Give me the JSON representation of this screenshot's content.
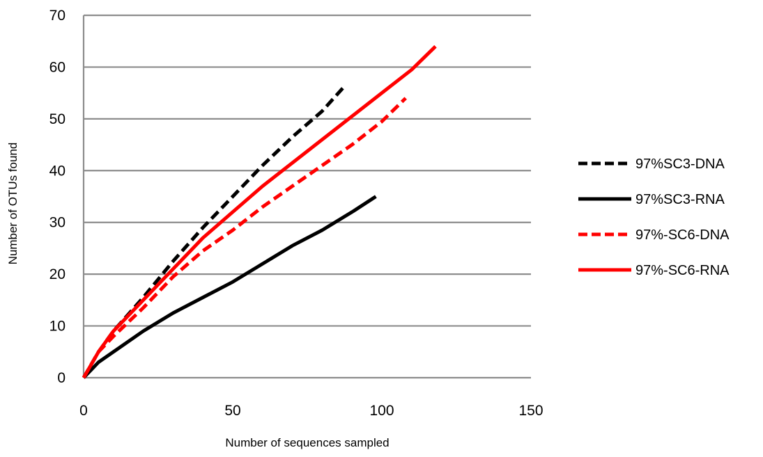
{
  "chart_data": {
    "type": "line",
    "title": "",
    "xlabel": "Number of sequences sampled",
    "ylabel": "Number of OTUs found",
    "xlim": [
      0,
      150
    ],
    "ylim": [
      0,
      70
    ],
    "xticks": [
      0,
      50,
      100,
      150
    ],
    "yticks": [
      0,
      10,
      20,
      30,
      40,
      50,
      60,
      70
    ],
    "grid": "horizontal",
    "legend_position": "right",
    "series": [
      {
        "name": "97%SC3-DNA",
        "color": "#000000",
        "dash": "dashed",
        "x": [
          0,
          5,
          10,
          20,
          30,
          40,
          50,
          60,
          70,
          80,
          87
        ],
        "y": [
          0,
          5,
          9,
          15.5,
          22.5,
          29,
          35,
          41,
          46.5,
          51.5,
          56
        ]
      },
      {
        "name": "97%SC3-RNA",
        "color": "#000000",
        "dash": "solid",
        "x": [
          0,
          5,
          10,
          20,
          30,
          40,
          50,
          60,
          70,
          80,
          90,
          98
        ],
        "y": [
          0,
          3,
          5,
          9,
          12.5,
          15.5,
          18.5,
          22,
          25.5,
          28.5,
          32,
          35
        ]
      },
      {
        "name": "97%-SC6-DNA",
        "color": "#ff0000",
        "dash": "dashed",
        "x": [
          0,
          5,
          10,
          20,
          30,
          40,
          50,
          60,
          70,
          80,
          90,
          100,
          108
        ],
        "y": [
          0,
          5,
          8,
          13.5,
          19.5,
          24.5,
          28.5,
          33,
          37,
          41,
          45,
          49.5,
          54
        ]
      },
      {
        "name": "97%-SC6-RNA",
        "color": "#ff0000",
        "dash": "solid",
        "x": [
          0,
          5,
          10,
          20,
          30,
          40,
          50,
          60,
          70,
          80,
          90,
          100,
          110,
          118
        ],
        "y": [
          0,
          5,
          9,
          15,
          21,
          27,
          32,
          37,
          41.5,
          46,
          50.5,
          55,
          59.5,
          64
        ]
      }
    ]
  }
}
